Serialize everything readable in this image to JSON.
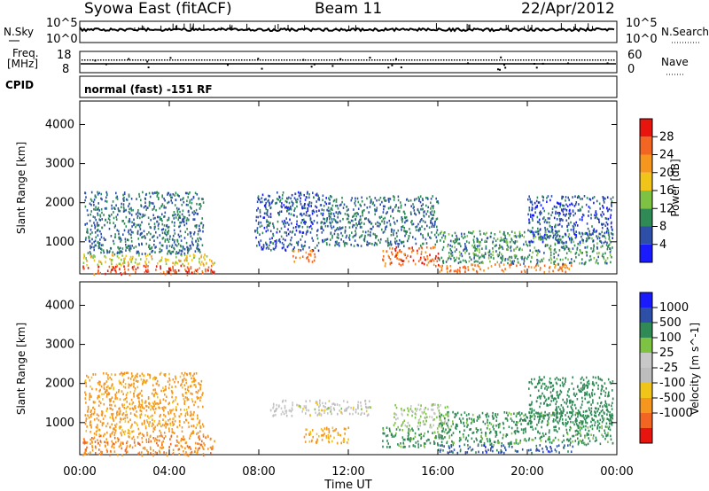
{
  "header": {
    "title": "Syowa East (fitACF)",
    "beam": "Beam 11",
    "date": "22/Apr/2012"
  },
  "params": {
    "nsky_label": "N.Sky",
    "nsky_top": "10^5",
    "nsky_bottom": "10^0",
    "nsearch_label": "N.Search",
    "nsearch_top": "10^5",
    "nsearch_bottom": "10^0",
    "freq_label": "Freq.",
    "freq_unit": "[MHz]",
    "freq_top": "18",
    "freq_bottom": "8",
    "nave_label": "Nave",
    "nave_top": "60",
    "nave_bottom": "0",
    "cpid_label": "CPID",
    "cpid_value": "normal (fast) -151 RF"
  },
  "colors": {
    "power": [
      "#1a1aff",
      "#2e4fa8",
      "#2f8a56",
      "#7dc243",
      "#f0c419",
      "#f5961e",
      "#f26522",
      "#e8150e"
    ],
    "velocity": [
      "#e8150e",
      "#f26522",
      "#f5961e",
      "#f0c419",
      "#bdbdbd",
      "#c8c8c8",
      "#7dc243",
      "#2f8a56",
      "#2e4fa8",
      "#1a1aff"
    ]
  },
  "chart_data": [
    {
      "type": "heatmap",
      "name": "power",
      "ylabel": "Slant Range [km]",
      "ylim": [
        180,
        4600
      ],
      "xlim": [
        0,
        24
      ],
      "yticks": [
        "1000",
        "2000",
        "3000",
        "4000"
      ],
      "ytick_values": [
        1000,
        2000,
        3000,
        4000
      ],
      "colorbar_label": "Power [dB]",
      "colorbar_ticks": [
        "4",
        "8",
        "12",
        "16",
        "20",
        "24",
        "28"
      ],
      "colorbar_range": [
        0,
        32
      ],
      "regions": [
        {
          "t0": 0.1,
          "t1": 6.0,
          "r0": 180,
          "r1": 420,
          "value": 27
        },
        {
          "t0": 0.1,
          "t1": 6.0,
          "r0": 420,
          "r1": 700,
          "value": 17
        },
        {
          "t0": 0.2,
          "t1": 5.5,
          "r0": 700,
          "r1": 2300,
          "value": 8
        },
        {
          "t0": 7.8,
          "t1": 11.0,
          "r0": 800,
          "r1": 2300,
          "value": 6
        },
        {
          "t0": 9.5,
          "t1": 10.5,
          "r0": 500,
          "r1": 800,
          "value": 24
        },
        {
          "t0": 13.5,
          "t1": 16.0,
          "r0": 400,
          "r1": 900,
          "value": 26
        },
        {
          "t0": 11.0,
          "t1": 16.0,
          "r0": 900,
          "r1": 2200,
          "value": 8
        },
        {
          "t0": 16.0,
          "t1": 22.0,
          "r0": 250,
          "r1": 450,
          "value": 24
        },
        {
          "t0": 16.0,
          "t1": 23.8,
          "r0": 450,
          "r1": 1300,
          "value": 10
        },
        {
          "t0": 20.0,
          "t1": 23.8,
          "r0": 1000,
          "r1": 2200,
          "value": 6
        }
      ]
    },
    {
      "type": "heatmap",
      "name": "velocity",
      "xlabel": "Time UT",
      "ylabel": "Slant Range [km]",
      "ylim": [
        180,
        4600
      ],
      "xlim": [
        0,
        24
      ],
      "xticks": [
        "00:00",
        "04:00",
        "08:00",
        "12:00",
        "16:00",
        "20:00",
        "00:00"
      ],
      "xtick_values": [
        0,
        4,
        8,
        12,
        16,
        20,
        24
      ],
      "yticks": [
        "1000",
        "2000",
        "3000",
        "4000"
      ],
      "ytick_values": [
        1000,
        2000,
        3000,
        4000
      ],
      "colorbar_label": "Velocity [m s^-1]",
      "colorbar_ticks": [
        "1000",
        "500",
        "100",
        "25",
        "-25",
        "-100",
        "-500",
        "-1000"
      ],
      "regions": [
        {
          "t0": 0.1,
          "t1": 6.0,
          "r0": 180,
          "r1": 700,
          "value": -450
        },
        {
          "t0": 0.2,
          "t1": 5.5,
          "r0": 700,
          "r1": 2300,
          "value": -150
        },
        {
          "t0": 8.5,
          "t1": 13.0,
          "r0": 1200,
          "r1": 1600,
          "value": 0
        },
        {
          "t0": 10.0,
          "t1": 12.0,
          "r0": 500,
          "r1": 900,
          "value": -120
        },
        {
          "t0": 13.5,
          "t1": 16.0,
          "r0": 400,
          "r1": 900,
          "value": 150
        },
        {
          "t0": 14.0,
          "t1": 16.5,
          "r0": 900,
          "r1": 1500,
          "value": 20
        },
        {
          "t0": 16.0,
          "t1": 22.0,
          "r0": 250,
          "r1": 450,
          "value": 700
        },
        {
          "t0": 16.0,
          "t1": 23.8,
          "r0": 450,
          "r1": 1300,
          "value": 150
        },
        {
          "t0": 20.0,
          "t1": 23.8,
          "r0": 1000,
          "r1": 2200,
          "value": 300
        }
      ]
    }
  ]
}
